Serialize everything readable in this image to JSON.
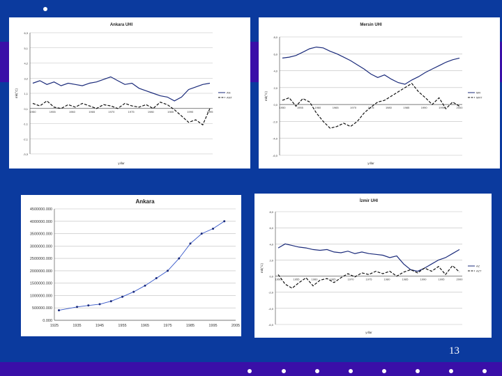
{
  "slide": {
    "page_number": "13"
  },
  "chart_data": [
    {
      "type": "line",
      "title": "Ankara UHI",
      "xlabel": "yıllar",
      "ylabel": "mk(°C)",
      "ylim": [
        -3.3,
        6.3
      ],
      "yticks": [
        "6,3",
        "5,1",
        "4,2",
        "3,2",
        "1,1",
        "0,1",
        "-1,1",
        "-2,1",
        "-3,3"
      ],
      "xticks": [
        "1950",
        "1955",
        "1960",
        "1965",
        "1970",
        "1975",
        "1980",
        "1985",
        "1990",
        "1995"
      ],
      "legend": [
        "AN",
        "ANT"
      ],
      "x": [
        1950,
        1952,
        1954,
        1956,
        1958,
        1960,
        1962,
        1964,
        1966,
        1968,
        1970,
        1972,
        1974,
        1976,
        1978,
        1980,
        1982,
        1984,
        1986,
        1988,
        1990,
        1992,
        1994,
        1996,
        1998,
        2000
      ],
      "series": [
        {
          "name": "AN",
          "values": [
            2.3,
            2.5,
            2.2,
            2.4,
            2.1,
            2.3,
            2.2,
            2.1,
            2.3,
            2.4,
            2.6,
            2.8,
            2.5,
            2.2,
            2.3,
            1.9,
            1.7,
            1.5,
            1.3,
            1.2,
            0.9,
            1.2,
            1.8,
            2.0,
            2.2,
            2.3
          ]
        },
        {
          "name": "ANT",
          "values": [
            0.7,
            0.5,
            0.9,
            0.4,
            0.3,
            0.6,
            0.4,
            0.7,
            0.5,
            0.3,
            0.6,
            0.5,
            0.3,
            0.7,
            0.5,
            0.4,
            0.6,
            0.3,
            0.8,
            0.6,
            0.2,
            -0.3,
            -0.8,
            -0.6,
            -1.0,
            0.3
          ]
        }
      ]
    },
    {
      "type": "line",
      "title": "Mersin UHI",
      "xlabel": "yıllar",
      "ylabel": "mk(°C)",
      "ylim": [
        -6.0,
        8.0
      ],
      "yticks": [
        "8,0",
        "6,0",
        "4,0",
        "2,0",
        "0,0",
        "-2,0",
        "-4,0",
        "-6,0"
      ],
      "xticks": [
        "1950",
        "1955",
        "1960",
        "1965",
        "1970",
        "1975",
        "1980",
        "1985",
        "1990",
        "1995",
        "2000"
      ],
      "legend": [
        "MR",
        "MRT"
      ],
      "x": [
        1950,
        1952,
        1954,
        1956,
        1958,
        1960,
        1962,
        1964,
        1966,
        1968,
        1970,
        1972,
        1974,
        1976,
        1978,
        1980,
        1982,
        1984,
        1986,
        1988,
        1990,
        1992,
        1994,
        1996,
        1998,
        2000,
        2002
      ],
      "series": [
        {
          "name": "MR",
          "values": [
            5.5,
            5.6,
            5.8,
            6.2,
            6.6,
            6.8,
            6.7,
            6.3,
            6.0,
            5.6,
            5.2,
            4.7,
            4.2,
            3.6,
            3.2,
            3.5,
            3.0,
            2.6,
            2.4,
            2.9,
            3.3,
            3.8,
            4.2,
            4.6,
            5.0,
            5.3,
            5.5
          ]
        },
        {
          "name": "MRT",
          "values": [
            0.5,
            0.8,
            -0.2,
            0.7,
            0.3,
            -1.0,
            -2.0,
            -2.8,
            -2.6,
            -2.2,
            -2.6,
            -2.0,
            -1.0,
            -0.3,
            0.3,
            0.5,
            1.0,
            1.5,
            2.0,
            2.5,
            1.5,
            0.8,
            0.0,
            0.8,
            -0.5,
            0.3,
            -0.2
          ]
        }
      ]
    },
    {
      "type": "line",
      "title": "Ankara",
      "xlabel": "",
      "ylabel": "",
      "ylim": [
        0,
        4500000
      ],
      "xlim": [
        1925,
        2005
      ],
      "yticks": [
        "4500000.000",
        "4000000.000",
        "3500000.000",
        "3000000.000",
        "2500000.000",
        "2000000.000",
        "1500000.000",
        "1000000.000",
        "500000.000",
        "0.000"
      ],
      "xticks": [
        "1925",
        "1935",
        "1945",
        "1955",
        "1965",
        "1975",
        "1985",
        "1995",
        "2005"
      ],
      "x": [
        1927,
        1935,
        1940,
        1945,
        1950,
        1955,
        1960,
        1965,
        1970,
        1975,
        1980,
        1985,
        1990,
        1995,
        2000
      ],
      "series": [
        {
          "name": "",
          "values": [
            404581,
            540000,
            600000,
            650000,
            770000,
            950000,
            1150000,
            1400000,
            1700000,
            2000000,
            2500000,
            3100000,
            3500000,
            3700000,
            4000000
          ]
        }
      ]
    },
    {
      "type": "line",
      "title": "İzmir UHI",
      "xlabel": "yıllar",
      "ylabel": "mk(°C)",
      "ylim": [
        -6.0,
        8.0
      ],
      "yticks": [
        "8,0",
        "6,0",
        "4,0",
        "2,0",
        "0,0",
        "-2,0",
        "-4,0",
        "-6,0"
      ],
      "xticks": [
        "1950",
        "1955",
        "1960",
        "1965",
        "1970",
        "1975",
        "1980",
        "1985",
        "1990",
        "1995",
        "2000"
      ],
      "legend": [
        "AZ",
        "AZT"
      ],
      "x": [
        1950,
        1952,
        1954,
        1956,
        1958,
        1960,
        1962,
        1964,
        1966,
        1968,
        1970,
        1972,
        1974,
        1976,
        1978,
        1980,
        1982,
        1984,
        1986,
        1988,
        1990,
        1992,
        1994,
        1996,
        1998,
        2000,
        2002
      ],
      "series": [
        {
          "name": "AZ",
          "values": [
            3.5,
            4.0,
            3.8,
            3.6,
            3.5,
            3.3,
            3.2,
            3.3,
            3.0,
            2.9,
            3.1,
            2.8,
            3.0,
            2.8,
            2.7,
            2.6,
            2.3,
            2.5,
            1.5,
            0.8,
            0.6,
            1.0,
            1.5,
            2.0,
            2.3,
            2.8,
            3.3
          ]
        },
        {
          "name": "AZT",
          "values": [
            0.2,
            -1.0,
            -1.5,
            -0.8,
            -0.2,
            -1.2,
            -0.5,
            -0.3,
            -0.8,
            -0.2,
            0.3,
            -0.1,
            0.4,
            0.2,
            0.6,
            0.3,
            0.6,
            0.0,
            0.5,
            0.8,
            0.4,
            1.0,
            0.6,
            1.2,
            0.2,
            1.3,
            0.5
          ]
        }
      ]
    }
  ]
}
